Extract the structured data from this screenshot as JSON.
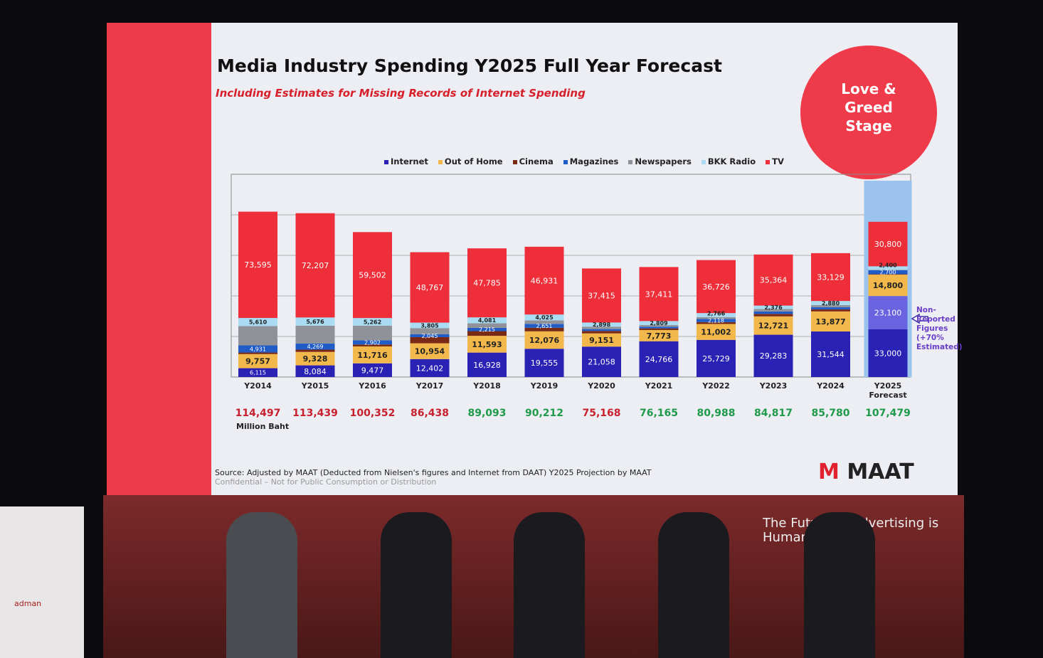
{
  "slide": {
    "title": "Media Industry Spending Y2025 Full Year Forecast",
    "subtitle": "Including Estimates for Missing Records of Internet Spending",
    "badge": [
      "Love &",
      "Greed",
      "Stage"
    ],
    "source": "Source: Adjusted by MAAT (Deducted from Nielsen's figures and Internet from DAAT) Y2025 Projection by MAAT",
    "confidential": "Confidential – Not for Public Consumption or Distribution",
    "logo": "MAAT",
    "note": "Non-Reported Figures (+70% Estimated)"
  },
  "stage": {
    "text": "The Future of Advertising is Humanity",
    "podium_logo": "adman"
  },
  "chart_data": {
    "type": "bar",
    "stacked": true,
    "title": "Media Industry Spending Y2025 Full Year Forecast",
    "unit_label": "Million Baht",
    "grid": true,
    "legend_position": "top",
    "categories": [
      "Y2014",
      "Y2015",
      "Y2016",
      "Y2017",
      "Y2018",
      "Y2019",
      "Y2020",
      "Y2021",
      "Y2022",
      "Y2023",
      "Y2024",
      "Y2025 Forecast"
    ],
    "series": [
      {
        "name": "Internet",
        "color": "#2a22b5",
        "values": [
          6115,
          8084,
          9477,
          12402,
          16928,
          19555,
          21058,
          24766,
          25729,
          29283,
          31544,
          33000
        ]
      },
      {
        "name": "Internet (Non-Reported, estimated)",
        "color": "#6a63e0",
        "values": [
          null,
          null,
          null,
          null,
          null,
          null,
          null,
          null,
          null,
          null,
          null,
          23100
        ]
      },
      {
        "name": "Out of Home",
        "color": "#f2b84b",
        "values": [
          9757,
          9328,
          11716,
          10954,
          11593,
          12076,
          9151,
          7773,
          11002,
          12721,
          13877,
          14800
        ]
      },
      {
        "name": "Cinema",
        "color": "#7a2a14",
        "values": [
          1105,
          1540,
          1311,
          null,
          null,
          null,
          null,
          null,
          null,
          null,
          null,
          null
        ]
      },
      {
        "name": "Magazines",
        "color": "#1f5cc8",
        "values": [
          4931,
          4269,
          2902,
          2045,
          2215,
          2651,
          1296,
          null,
          2118,
          null,
          null,
          2700
        ]
      },
      {
        "name": "Newspapers",
        "color": "#8f9299",
        "values": [
          null,
          null,
          null,
          null,
          null,
          null,
          null,
          null,
          null,
          null,
          null,
          null
        ]
      },
      {
        "name": "BKK Radio",
        "color": "#a9dcf2",
        "values": [
          5610,
          5676,
          5262,
          3805,
          4081,
          4025,
          2898,
          2809,
          2766,
          2376,
          2880,
          2400
        ]
      },
      {
        "name": "TV",
        "color": "#ee2f3a",
        "values": [
          73595,
          72207,
          59502,
          48767,
          47785,
          46931,
          37415,
          37411,
          36726,
          35364,
          33129,
          30800
        ]
      }
    ],
    "totals": [
      114497,
      113439,
      100352,
      86438,
      89093,
      90212,
      75168,
      76165,
      80988,
      84817,
      85780,
      107479
    ],
    "total_colors": [
      "#c8202c",
      "#c8202c",
      "#c8202c",
      "#c8202c",
      "#1f9a4a",
      "#1f9a4a",
      "#c8202c",
      "#1f9a4a",
      "#1f9a4a",
      "#1f9a4a",
      "#1f9a4a",
      "#1f9a4a"
    ],
    "legend": [
      "Internet",
      "Out of Home",
      "Cinema",
      "Magazines",
      "Newspapers",
      "BKK Radio",
      "TV"
    ]
  }
}
